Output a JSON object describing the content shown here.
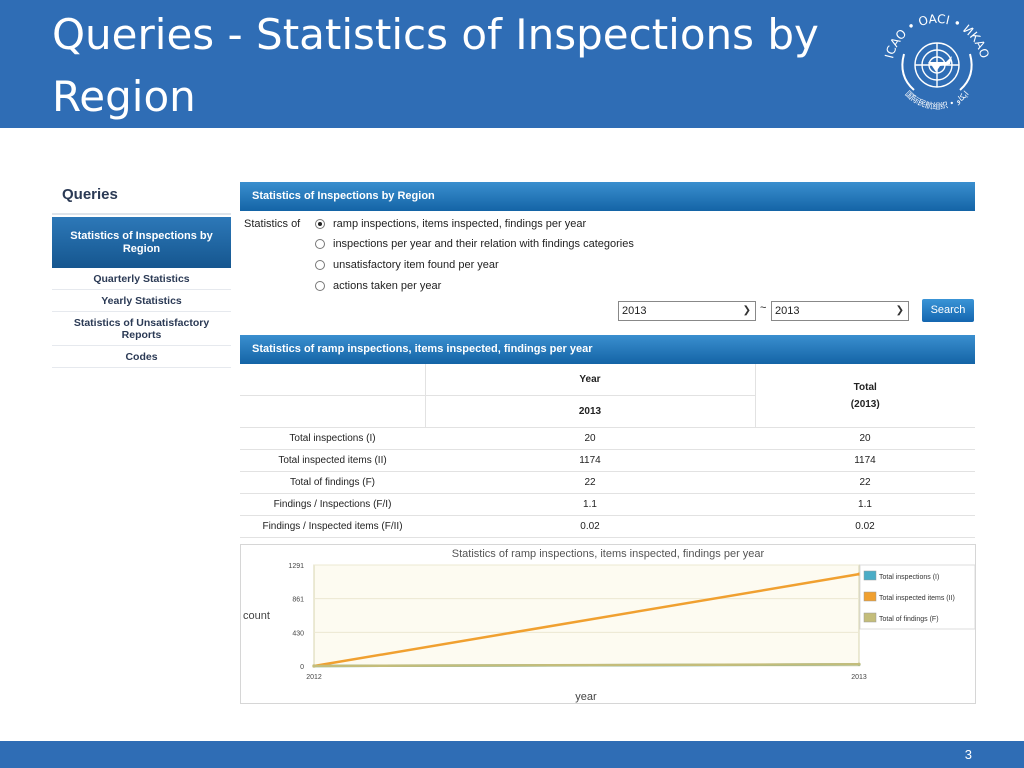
{
  "slide": {
    "title": "Queries - Statistics of Inspections by Region",
    "page_number": "3"
  },
  "logo": {
    "top_text": "ICAO • OACI • ИКАО",
    "bottom_text": "国际民航组织 • ايكاو"
  },
  "sidebar": {
    "title": "Queries",
    "active": "Statistics of Inspections by Region",
    "items": [
      {
        "label": "Quarterly Statistics"
      },
      {
        "label": "Yearly Statistics"
      },
      {
        "label": "Statistics of Unsatisfactory Reports"
      },
      {
        "label": "Codes"
      }
    ]
  },
  "query_panel": {
    "header": "Statistics of Inspections by Region",
    "statistics_of_label": "Statistics of",
    "options": [
      {
        "label": "ramp inspections, items inspected, findings per year",
        "checked": true
      },
      {
        "label": "inspections per year and their relation with findings categories",
        "checked": false
      },
      {
        "label": "unsatisfactory item found per year",
        "checked": false
      },
      {
        "label": "actions taken per year",
        "checked": false
      }
    ],
    "from_year": "2013",
    "separator": "~",
    "to_year": "2013",
    "search_label": "Search"
  },
  "results_panel": {
    "header": "Statistics of ramp inspections, items inspected, findings per year",
    "col_year": "Year",
    "col_year_value": "2013",
    "col_total": "Total",
    "col_total_range": "(2013)",
    "rows": [
      {
        "label": "Total inspections (I)",
        "year": "20",
        "total": "20"
      },
      {
        "label": "Total inspected items (II)",
        "year": "1174",
        "total": "1174"
      },
      {
        "label": "Total of findings (F)",
        "year": "22",
        "total": "22"
      },
      {
        "label": "Findings / Inspections (F/I)",
        "year": "1.1",
        "total": "1.1"
      },
      {
        "label": "Findings / Inspected items (F/II)",
        "year": "0.02",
        "total": "0.02"
      }
    ]
  },
  "colors": {
    "accent_blue": "#2f6db5",
    "series_inspections": "#4bacc6",
    "series_items": "#f0a030",
    "series_findings": "#c4bd7a"
  },
  "chart_data": {
    "type": "line",
    "title": "Statistics of ramp inspections, items inspected, findings per year",
    "xlabel": "year",
    "ylabel": "count",
    "x": [
      2012,
      2013
    ],
    "x_tick_labels": [
      "2012",
      "2013"
    ],
    "y_tick_labels": [
      "0",
      "430",
      "861",
      "1291"
    ],
    "ylim": [
      0,
      1291
    ],
    "grid": true,
    "legend": "right",
    "series": [
      {
        "name": "Total inspections (I)",
        "values": [
          0,
          20
        ]
      },
      {
        "name": "Total inspected items (II)",
        "values": [
          0,
          1174
        ]
      },
      {
        "name": "Total of findings (F)",
        "values": [
          0,
          22
        ]
      }
    ]
  }
}
